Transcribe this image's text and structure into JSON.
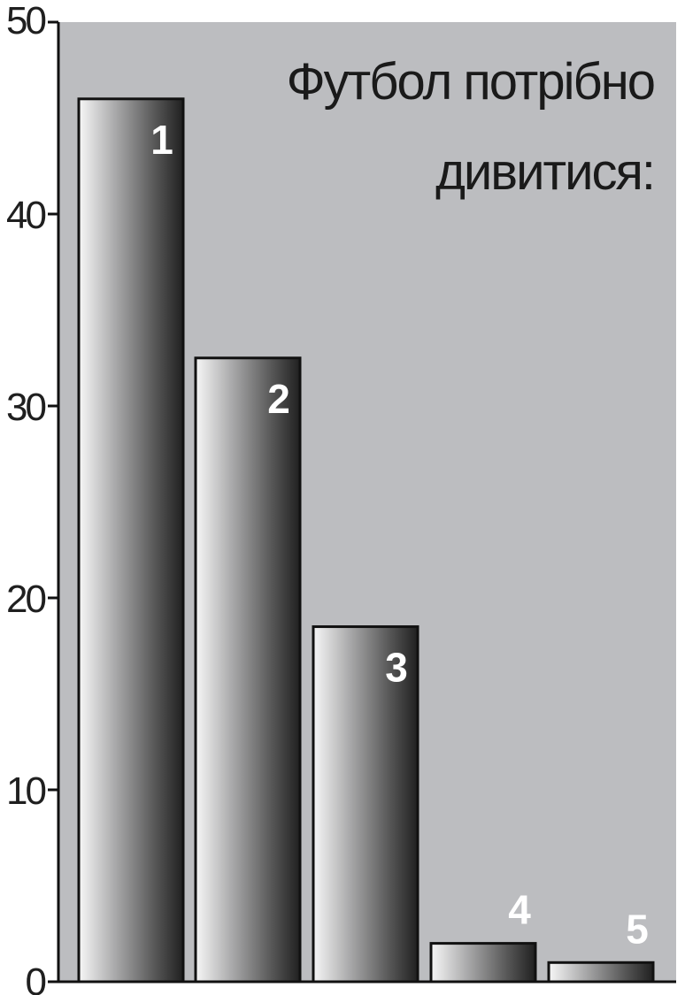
{
  "chart_data": {
    "type": "bar",
    "title_lines": [
      "Футбол потрібно",
      "дивитися:"
    ],
    "categories": [
      "1",
      "2",
      "3",
      "4",
      "5"
    ],
    "values": [
      46,
      32.5,
      18.5,
      2,
      1
    ],
    "ylim": [
      0,
      50
    ],
    "yticks": [
      "0",
      "10",
      "20",
      "30",
      "40",
      "50"
    ],
    "xlabel": "",
    "ylabel": "",
    "grid": false,
    "colors": {
      "plot_background": "#bcbdc0",
      "bar_light": "#f5f5f5",
      "bar_dark": "#2b2b2b",
      "bar_outline": "#111111",
      "axis": "#111111",
      "bar_label": "#ffffff"
    }
  }
}
